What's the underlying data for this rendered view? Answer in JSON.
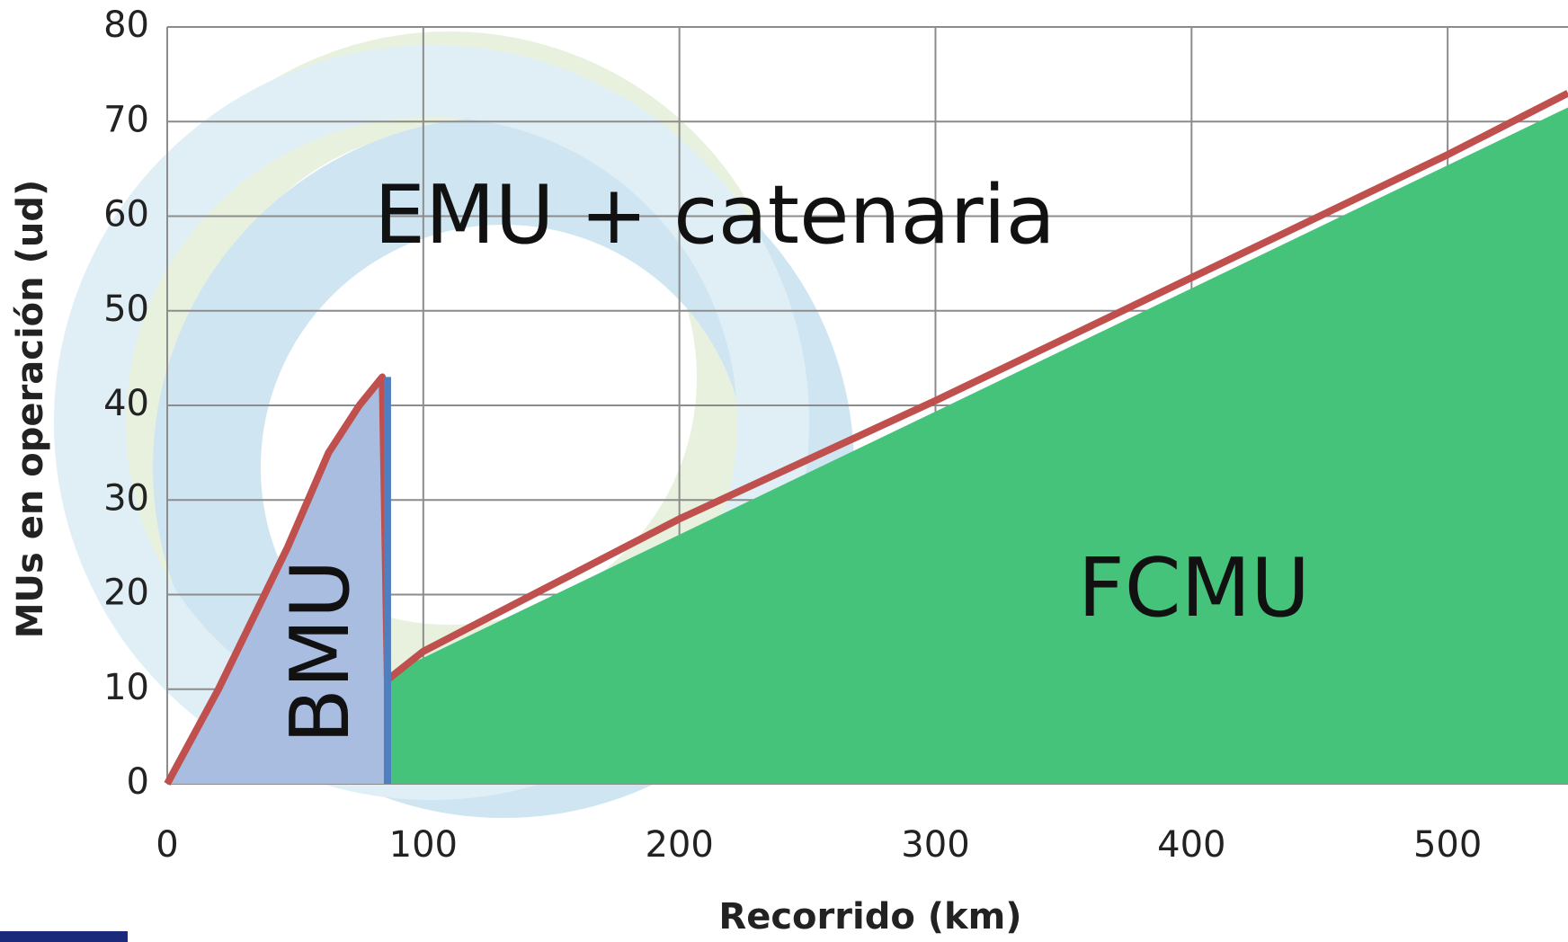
{
  "chart_data": {
    "type": "line",
    "xlabel": "Recorrido (km)",
    "ylabel": "MUs en operación (ud)",
    "annotations": [
      "EMU + catenaria",
      "BMU",
      "FCMU"
    ],
    "series": [
      {
        "type": "area",
        "color": "#a9bde0",
        "x": [
          0,
          20,
          47,
          63,
          75,
          86
        ],
        "values": [
          0,
          10,
          25,
          35,
          40,
          43
        ]
      },
      {
        "type": "area",
        "color": "#46c37b",
        "x": [
          86,
          547
        ],
        "values": [
          11.5,
          71.5
        ]
      },
      {
        "type": "line",
        "color": "#c0504d",
        "x": [
          0,
          20,
          47,
          63,
          75,
          84,
          86,
          100,
          150,
          200,
          300,
          400,
          500,
          547
        ],
        "values": [
          0,
          10,
          25,
          35,
          40,
          43,
          11,
          14,
          21,
          28,
          40.5,
          53.5,
          66.5,
          73
        ]
      },
      {
        "type": "line",
        "color": "#4f7fc0",
        "x": [
          86,
          86
        ],
        "values": [
          0,
          43
        ]
      }
    ],
    "xlim": [
      0,
      547
    ],
    "ylim": [
      0,
      80
    ],
    "xticks": [
      0,
      100,
      200,
      300,
      400,
      500
    ],
    "yticks": [
      0,
      10,
      20,
      30,
      40,
      50,
      60,
      70,
      80
    ],
    "grid": true
  }
}
